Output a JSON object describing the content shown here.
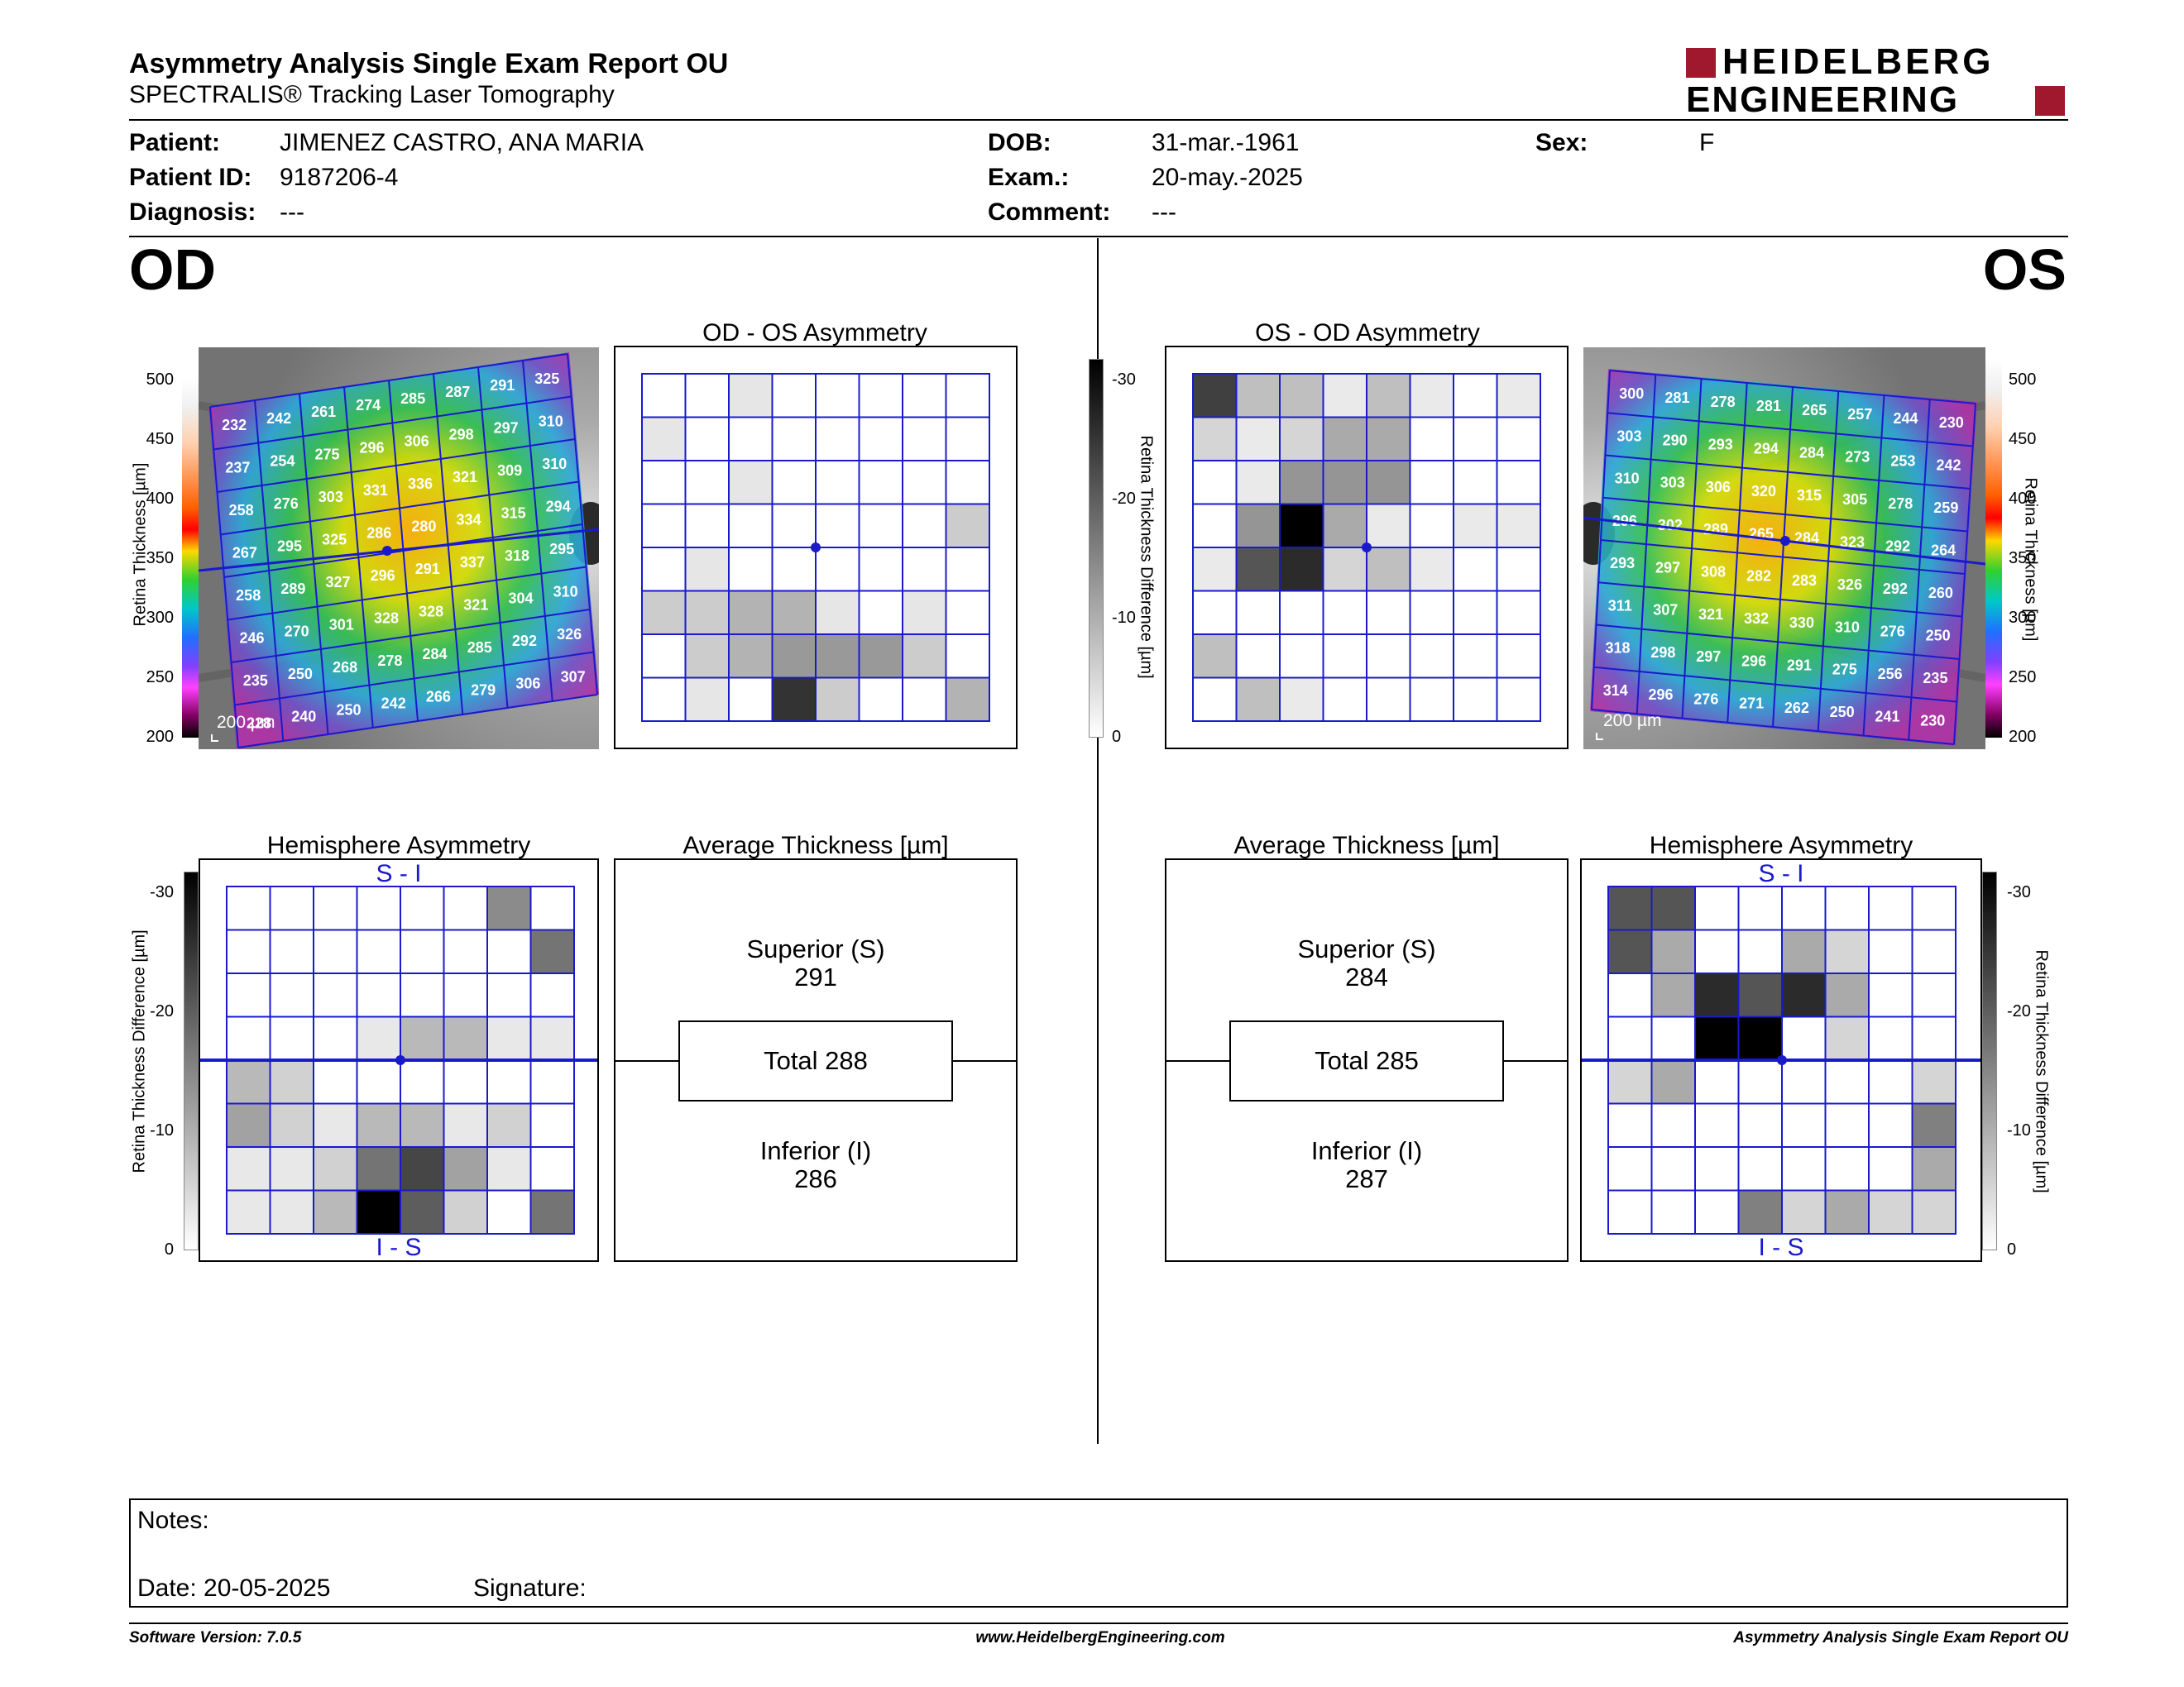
{
  "header": {
    "title": "Asymmetry Analysis Single Exam Report OU",
    "subtitle": "SPECTRALIS® Tracking Laser Tomography",
    "logo_top": "HEIDELBERG",
    "logo_bottom": "ENGINEERING",
    "brand_color": "#a0182e"
  },
  "patient": {
    "patient_label": "Patient:",
    "patient_value": "JIMENEZ CASTRO, ANA MARIA",
    "id_label": "Patient ID:",
    "id_value": "9187206-4",
    "diag_label": "Diagnosis:",
    "diag_value": "---",
    "dob_label": "DOB:",
    "dob_value": "31-mar.-1961",
    "exam_label": "Exam.:",
    "exam_value": "20-may.-2025",
    "comment_label": "Comment:",
    "comment_value": "---",
    "sex_label": "Sex:",
    "sex_value": "F"
  },
  "od": {
    "eye": "OD",
    "scale_label": "200 µm",
    "thickness_axis_label": "Retina Thickness [µm]",
    "thickness_ticks": [
      "500",
      "450",
      "400",
      "350",
      "300",
      "250",
      "200"
    ],
    "grid": [
      [
        232,
        242,
        261,
        274,
        285,
        287,
        291,
        325
      ],
      [
        237,
        254,
        275,
        296,
        306,
        298,
        297,
        310
      ],
      [
        258,
        276,
        303,
        331,
        336,
        321,
        309,
        310
      ],
      [
        267,
        295,
        325,
        286,
        280,
        334,
        315,
        294
      ],
      [
        258,
        289,
        327,
        296,
        291,
        337,
        318,
        295
      ],
      [
        246,
        270,
        301,
        328,
        328,
        321,
        304,
        310
      ],
      [
        235,
        250,
        268,
        278,
        284,
        285,
        292,
        326
      ],
      [
        228,
        240,
        250,
        242,
        266,
        279,
        306,
        307
      ]
    ],
    "asym_title": "OD - OS Asymmetry",
    "asym_cells": [
      [
        0,
        0,
        1,
        0,
        0,
        0,
        0,
        0
      ],
      [
        1,
        0,
        0,
        0,
        0,
        0,
        0,
        0
      ],
      [
        0,
        0,
        1,
        0,
        0,
        0,
        0,
        0
      ],
      [
        0,
        0,
        0,
        0,
        0,
        0,
        0,
        2
      ],
      [
        0,
        1,
        0,
        0,
        0,
        0,
        0,
        0
      ],
      [
        2,
        2,
        3,
        3,
        1,
        0,
        1,
        0
      ],
      [
        0,
        2,
        3,
        4,
        4,
        4,
        2,
        0
      ],
      [
        0,
        1,
        0,
        8,
        2,
        0,
        0,
        3
      ]
    ],
    "hemi_title": "Hemisphere Asymmetry",
    "hemi_top": "S - I",
    "hemi_bottom": "I - S",
    "hemi_axis_label": "Retina Thickness Difference [µm]",
    "hemi_ticks": [
      "-30",
      "-20",
      "-10",
      "0"
    ],
    "hemi_cells": [
      [
        0,
        0,
        0,
        0,
        0,
        0,
        5,
        0
      ],
      [
        0,
        0,
        0,
        0,
        0,
        0,
        0,
        6
      ],
      [
        0,
        0,
        0,
        0,
        0,
        0,
        0,
        0
      ],
      [
        0,
        0,
        0,
        1,
        3,
        3,
        1,
        1
      ],
      [
        3,
        2,
        0,
        0,
        0,
        0,
        0,
        0
      ],
      [
        4,
        2,
        1,
        3,
        3,
        1,
        2,
        0
      ],
      [
        1,
        1,
        2,
        6,
        8,
        4,
        1,
        0
      ],
      [
        1,
        1,
        3,
        11,
        7,
        2,
        0,
        6
      ]
    ],
    "avg_title": "Average Thickness [µm]",
    "superior_label": "Superior (S)",
    "superior_value": "291",
    "total_text": "Total 288",
    "inferior_label": "Inferior (I)",
    "inferior_value": "286"
  },
  "os": {
    "eye": "OS",
    "scale_label": "200 µm",
    "thickness_axis_label": "Retina Thickness [µm]",
    "thickness_ticks": [
      "500",
      "450",
      "400",
      "350",
      "300",
      "250",
      "200"
    ],
    "grid": [
      [
        300,
        281,
        278,
        281,
        265,
        257,
        244,
        230
      ],
      [
        303,
        290,
        293,
        294,
        284,
        273,
        253,
        242
      ],
      [
        310,
        303,
        306,
        320,
        315,
        305,
        278,
        259
      ],
      [
        296,
        302,
        289,
        265,
        284,
        323,
        292,
        264
      ],
      [
        293,
        297,
        308,
        282,
        283,
        326,
        292,
        260
      ],
      [
        311,
        307,
        321,
        332,
        330,
        310,
        276,
        250
      ],
      [
        318,
        298,
        297,
        296,
        291,
        275,
        256,
        235
      ],
      [
        314,
        296,
        276,
        271,
        262,
        250,
        241,
        230
      ]
    ],
    "asym_title": "OS - OD Asymmetry",
    "asym_axis_label": "Retina Thickness Difference [µm]",
    "asym_ticks": [
      "-30",
      "-20",
      "-10",
      "0"
    ],
    "asym_cells": [
      [
        9,
        3,
        3,
        1,
        3,
        1,
        0,
        1
      ],
      [
        2,
        1,
        2,
        4,
        4,
        0,
        0,
        0
      ],
      [
        0,
        1,
        5,
        5,
        5,
        0,
        0,
        0
      ],
      [
        0,
        5,
        12,
        4,
        1,
        0,
        1,
        1
      ],
      [
        1,
        8,
        10,
        2,
        3,
        1,
        0,
        0
      ],
      [
        0,
        0,
        0,
        0,
        0,
        0,
        0,
        0
      ],
      [
        3,
        0,
        0,
        0,
        0,
        0,
        0,
        0
      ],
      [
        0,
        3,
        1,
        0,
        0,
        0,
        0,
        0
      ]
    ],
    "hemi_title": "Hemisphere Asymmetry",
    "hemi_top": "S - I",
    "hemi_bottom": "I - S",
    "hemi_axis_label": "Retina Thickness Difference [µm]",
    "hemi_ticks": [
      "-30",
      "-20",
      "-10",
      "0"
    ],
    "hemi_cells": [
      [
        4,
        4,
        0,
        0,
        0,
        0,
        0,
        0
      ],
      [
        4,
        2,
        0,
        0,
        2,
        1,
        0,
        0
      ],
      [
        0,
        2,
        5,
        4,
        5,
        2,
        0,
        0
      ],
      [
        0,
        0,
        6,
        6,
        0,
        1,
        0,
        0
      ],
      [
        1,
        2,
        0,
        0,
        0,
        0,
        0,
        1
      ],
      [
        0,
        0,
        0,
        0,
        0,
        0,
        0,
        3
      ],
      [
        0,
        0,
        0,
        0,
        0,
        0,
        0,
        2
      ],
      [
        0,
        0,
        0,
        3,
        1,
        2,
        1,
        1
      ]
    ],
    "avg_title": "Average Thickness [µm]",
    "superior_label": "Superior (S)",
    "superior_value": "284",
    "total_text": "Total 285",
    "inferior_label": "Inferior (I)",
    "inferior_value": "287"
  },
  "notes": {
    "notes_label": "Notes:",
    "date_label": "Date: 20-05-2025",
    "signature_label": "Signature:"
  },
  "footer": {
    "version": "Software Version: 7.0.5",
    "url": "www.HeidelbergEngineering.com",
    "report": "Asymmetry Analysis Single Exam Report OU"
  }
}
